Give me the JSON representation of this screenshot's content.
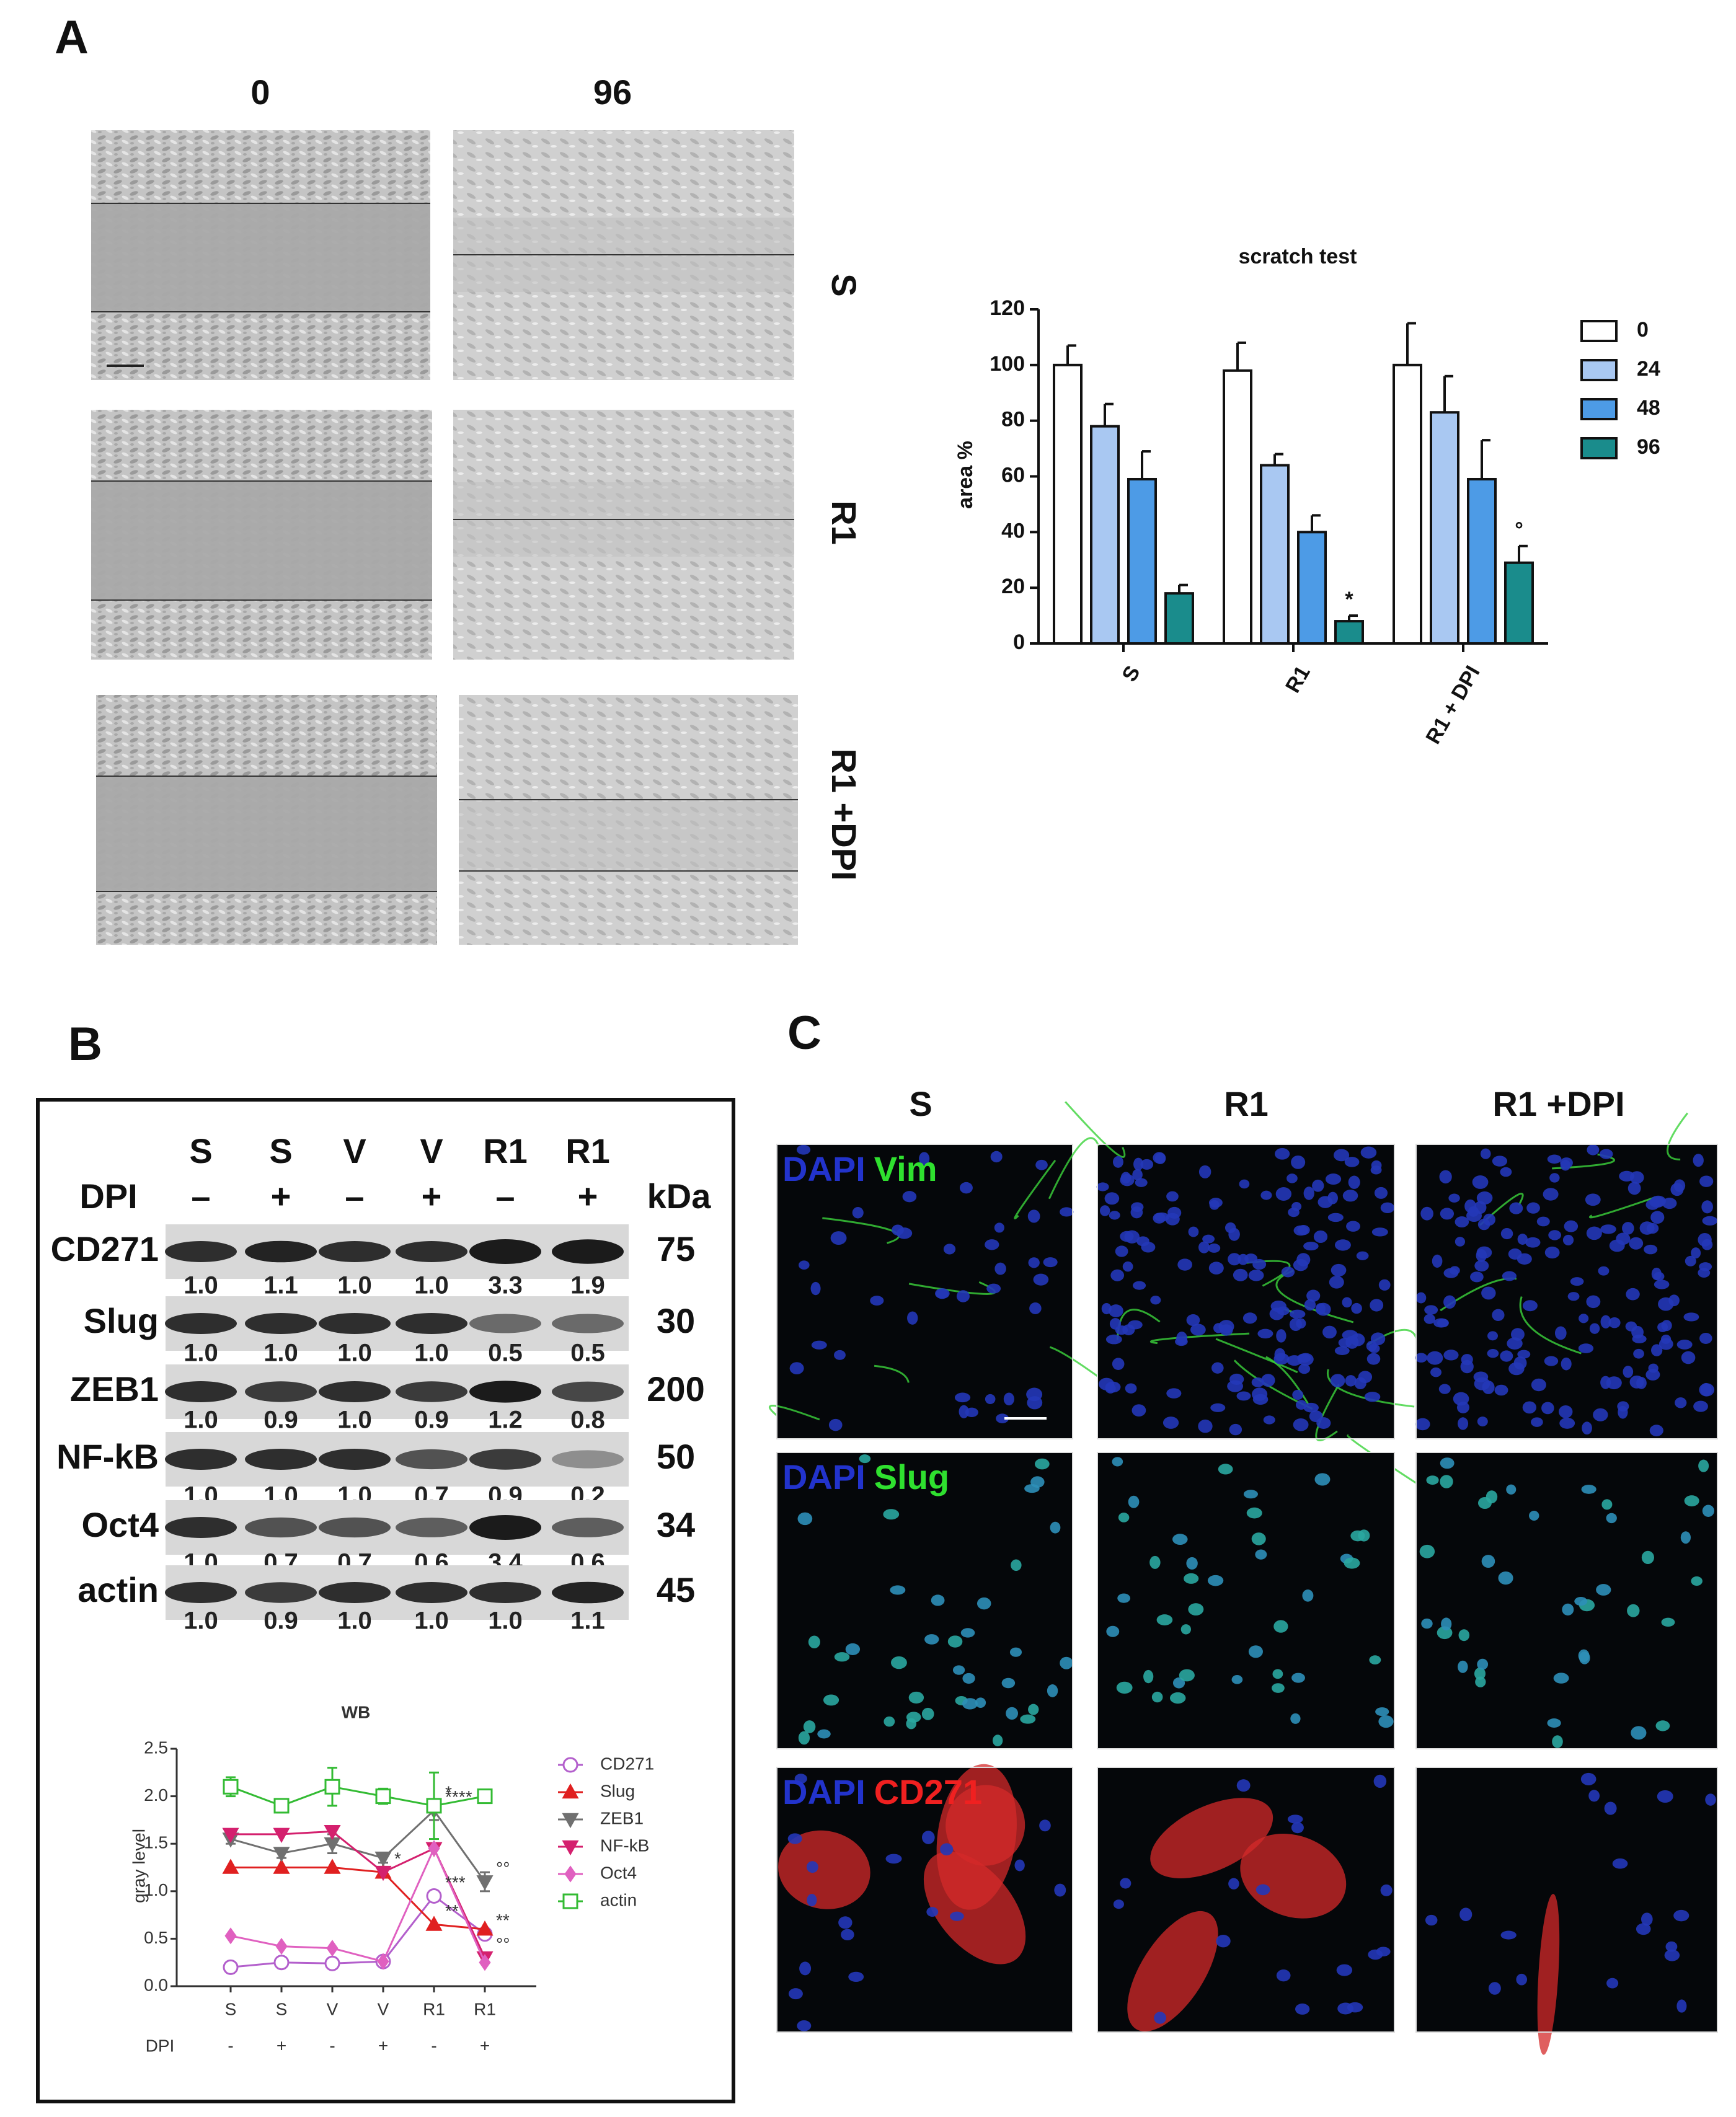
{
  "panel_labels": [
    "A",
    "B",
    "C"
  ],
  "scratch_assay": {
    "time_labels": [
      "0",
      "96"
    ],
    "row_labels": [
      "S",
      "R1",
      "R1 +DPI"
    ]
  },
  "western_blot": {
    "lanes": [
      "S",
      "S",
      "V",
      "V",
      "R1",
      "R1"
    ],
    "dpi_label": "DPI",
    "dpi": [
      "–",
      "+",
      "–",
      "+",
      "–",
      "+"
    ],
    "kda_label": "kDa",
    "bands": [
      {
        "name": "CD271",
        "kda": "75",
        "quantification": [
          "1.0",
          "1.1",
          "1.0",
          "1.0",
          "3.3",
          "1.9"
        ]
      },
      {
        "name": "Slug",
        "kda": "30",
        "quantification": [
          "1.0",
          "1.0",
          "1.0",
          "1.0",
          "0.5",
          "0.5"
        ]
      },
      {
        "name": "ZEB1",
        "kda": "200",
        "quantification": [
          "1.0",
          "0.9",
          "1.0",
          "0.9",
          "1.2",
          "0.8"
        ]
      },
      {
        "name": "NF-kB",
        "kda": "50",
        "quantification": [
          "1.0",
          "1.0",
          "1.0",
          "0.7",
          "0.9",
          "0.2"
        ]
      },
      {
        "name": "Oct4",
        "kda": "34",
        "quantification": [
          "1.0",
          "0.7",
          "0.7",
          "0.6",
          "3.4",
          "0.6"
        ]
      },
      {
        "name": "actin",
        "kda": "45",
        "quantification": [
          "1.0",
          "0.9",
          "1.0",
          "1.0",
          "1.0",
          "1.1"
        ]
      }
    ]
  },
  "immunofluorescence": {
    "columns": [
      "S",
      "R1",
      "R1 +DPI"
    ],
    "stains": [
      {
        "counterstain": "DAPI",
        "marker": "Vim",
        "marker_color": "#2fe02f"
      },
      {
        "counterstain": "DAPI",
        "marker": "Slug",
        "marker_color": "#2fe02f"
      },
      {
        "counterstain": "DAPI",
        "marker": "CD271",
        "marker_color": "#f02020"
      }
    ]
  },
  "chart_data": [
    {
      "type": "bar",
      "title": "scratch test",
      "y_label": "area %",
      "categories": [
        "S",
        "R1",
        "R1 + DPI"
      ],
      "series": [
        {
          "name": "0",
          "color": "#ffffff",
          "values": [
            100,
            98,
            100
          ],
          "errors": [
            7,
            10,
            15
          ]
        },
        {
          "name": "24",
          "color": "#a9c8f2",
          "values": [
            78,
            64,
            83
          ],
          "errors": [
            8,
            4,
            13
          ]
        },
        {
          "name": "48",
          "color": "#4d9be6",
          "values": [
            59,
            40,
            59
          ],
          "errors": [
            10,
            6,
            14
          ]
        },
        {
          "name": "96",
          "color": "#1a8c8c",
          "values": [
            18,
            8,
            29
          ],
          "errors": [
            3,
            2,
            6
          ]
        }
      ],
      "annotations": [
        {
          "text": "*",
          "series": 3,
          "category": 1
        },
        {
          "text": "°",
          "series": 3,
          "category": 2
        }
      ],
      "ylim": [
        0,
        120
      ],
      "yticks": [
        0,
        20,
        40,
        60,
        80,
        100,
        120
      ],
      "legend": "right"
    },
    {
      "type": "line",
      "title": "WB",
      "y_label": "gray level",
      "categories": [
        "S",
        "S",
        "V",
        "V",
        "R1",
        "R1"
      ],
      "sub_label": "DPI",
      "subcategories": [
        "-",
        "+",
        "-",
        "+",
        "-",
        "+"
      ],
      "series": [
        {
          "name": "CD271",
          "color": "#b35fcc",
          "marker": "circle-open",
          "values": [
            0.2,
            0.25,
            0.24,
            0.26,
            0.95,
            0.55
          ]
        },
        {
          "name": "Slug",
          "color": "#e02020",
          "marker": "triangle",
          "values": [
            1.25,
            1.25,
            1.25,
            1.2,
            0.65,
            0.6
          ]
        },
        {
          "name": "ZEB1",
          "color": "#707070",
          "marker": "triangle-down",
          "values": [
            1.55,
            1.4,
            1.5,
            1.35,
            1.85,
            1.1
          ],
          "errors": [
            0.05,
            0.05,
            0.1,
            0.05,
            0.1,
            0.1
          ]
        },
        {
          "name": "NF-kB",
          "color": "#d4206e",
          "marker": "triangle-down",
          "values": [
            1.6,
            1.6,
            1.63,
            1.2,
            1.45,
            0.3
          ]
        },
        {
          "name": "Oct4",
          "color": "#e060c0",
          "marker": "diamond",
          "values": [
            0.53,
            0.42,
            0.4,
            0.26,
            1.45,
            0.25
          ]
        },
        {
          "name": "actin",
          "color": "#33bb33",
          "marker": "square-open",
          "values": [
            2.1,
            1.9,
            2.1,
            2.0,
            1.9,
            2.0
          ],
          "errors": [
            0.1,
            0.07,
            0.2,
            0.08,
            0.35,
            0.07
          ]
        }
      ],
      "annotations": [
        {
          "text": "*",
          "series": 5,
          "category": 4
        },
        {
          "text": "****",
          "series": 2,
          "category": 4
        },
        {
          "text": "***",
          "series": 0,
          "category": 4
        },
        {
          "text": "**",
          "series": 1,
          "category": 4
        },
        {
          "text": "*",
          "series": 3,
          "category": 3
        },
        {
          "text": "**",
          "series": 0,
          "category": 5
        },
        {
          "text": "°°",
          "series": 2,
          "category": 5
        },
        {
          "text": "°°",
          "series": 3,
          "category": 5
        }
      ],
      "ylim": [
        0,
        2.5
      ],
      "yticks": [
        {
          "value": 0,
          "label": "0.0"
        },
        0.5,
        {
          "value": 1,
          "label": "1.0"
        },
        1.5,
        {
          "value": 2,
          "label": "2.0"
        },
        2.5
      ],
      "legend": "right"
    }
  ]
}
